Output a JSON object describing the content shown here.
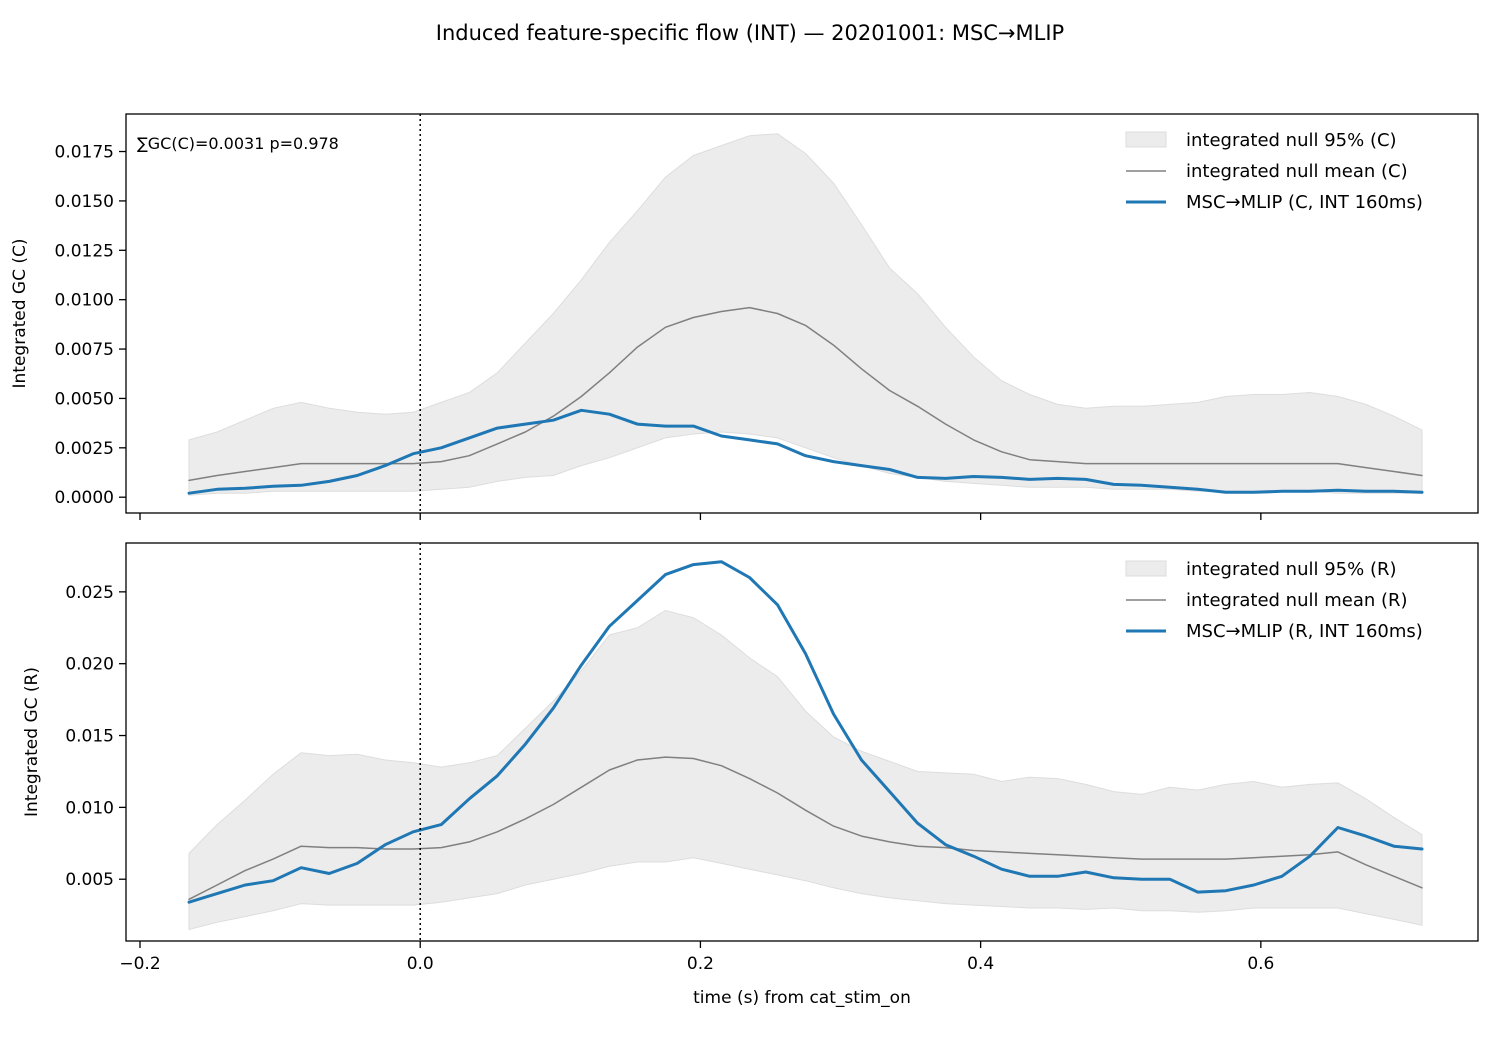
{
  "figure": {
    "suptitle": "Induced feature-specific flow (INT) — 20201001: MSC→MLIP",
    "xlabel": "time (s) from cat_stim_on",
    "colors": {
      "signal": "#1f77b4",
      "null_mean": "#808080",
      "null_band": "#ececec",
      "null_band_edge": "#dddddd"
    }
  },
  "chart_data": [
    {
      "type": "line",
      "ylabel": "Integrated GC (C)",
      "annotation": "∑GC(C)=0.0031  p=0.978",
      "xlim": [
        -0.21,
        0.755
      ],
      "ylim": [
        -0.0008,
        0.0194
      ],
      "xticks": [
        -0.2,
        0.0,
        0.2,
        0.4,
        0.6
      ],
      "xtick_labels": [
        "",
        "",
        "",
        "",
        ""
      ],
      "yticks": [
        0.0,
        0.0025,
        0.005,
        0.0075,
        0.01,
        0.0125,
        0.015,
        0.0175
      ],
      "ytick_labels": [
        "0.0000",
        "0.0025",
        "0.0050",
        "0.0075",
        "0.0100",
        "0.0125",
        "0.0150",
        "0.0175"
      ],
      "vline_x": 0.0,
      "legend_position": "upper right",
      "legend": [
        "integrated null 95% (C)",
        "integrated null mean (C)",
        "MSC→MLIP (C, INT 160ms)"
      ],
      "x": [
        -0.165,
        -0.145,
        -0.125,
        -0.105,
        -0.085,
        -0.065,
        -0.045,
        -0.025,
        -0.005,
        0.015,
        0.035,
        0.055,
        0.075,
        0.095,
        0.115,
        0.135,
        0.155,
        0.175,
        0.195,
        0.215,
        0.235,
        0.255,
        0.275,
        0.295,
        0.315,
        0.335,
        0.355,
        0.375,
        0.395,
        0.415,
        0.435,
        0.455,
        0.475,
        0.495,
        0.515,
        0.535,
        0.555,
        0.575,
        0.595,
        0.615,
        0.635,
        0.655,
        0.675,
        0.695,
        0.715
      ],
      "band_upper": [
        0.0029,
        0.0033,
        0.0039,
        0.0045,
        0.0048,
        0.0045,
        0.0043,
        0.0042,
        0.0043,
        0.0048,
        0.0053,
        0.0063,
        0.0078,
        0.0093,
        0.011,
        0.0129,
        0.0145,
        0.0162,
        0.0173,
        0.0178,
        0.0183,
        0.0184,
        0.0174,
        0.0159,
        0.0138,
        0.0116,
        0.0103,
        0.0086,
        0.0071,
        0.0059,
        0.0052,
        0.0047,
        0.0045,
        0.0046,
        0.0046,
        0.0047,
        0.0048,
        0.0051,
        0.0052,
        0.0052,
        0.0053,
        0.0051,
        0.0047,
        0.0041,
        0.0034
      ],
      "band_lower": [
        0.0001,
        0.0002,
        0.0002,
        0.0003,
        0.0003,
        0.0003,
        0.0003,
        0.0003,
        0.0003,
        0.0004,
        0.0005,
        0.0008,
        0.001,
        0.0011,
        0.0016,
        0.002,
        0.0025,
        0.003,
        0.0032,
        0.0033,
        0.0032,
        0.003,
        0.0025,
        0.002,
        0.0016,
        0.0012,
        0.001,
        0.0008,
        0.0007,
        0.0006,
        0.0005,
        0.0005,
        0.0005,
        0.0004,
        0.0004,
        0.0004,
        0.0003,
        0.0003,
        0.0003,
        0.0003,
        0.0003,
        0.0002,
        0.0002,
        0.0002,
        0.0002
      ],
      "series": [
        {
          "name": "integrated null mean (C)",
          "values": [
            0.00085,
            0.0011,
            0.0013,
            0.0015,
            0.0017,
            0.0017,
            0.0017,
            0.0017,
            0.0017,
            0.0018,
            0.0021,
            0.0027,
            0.0033,
            0.0041,
            0.0051,
            0.0063,
            0.0076,
            0.0086,
            0.0091,
            0.0094,
            0.0096,
            0.0093,
            0.0087,
            0.0077,
            0.0065,
            0.0054,
            0.0046,
            0.0037,
            0.0029,
            0.0023,
            0.0019,
            0.0018,
            0.0017,
            0.0017,
            0.0017,
            0.0017,
            0.0017,
            0.0017,
            0.0017,
            0.0017,
            0.0017,
            0.0017,
            0.0015,
            0.0013,
            0.0011
          ]
        },
        {
          "name": "MSC→MLIP (C, INT 160ms)",
          "values": [
            0.0002,
            0.0004,
            0.00045,
            0.00055,
            0.0006,
            0.0008,
            0.0011,
            0.0016,
            0.0022,
            0.0025,
            0.003,
            0.0035,
            0.0037,
            0.0039,
            0.0044,
            0.0042,
            0.0037,
            0.0036,
            0.0036,
            0.0031,
            0.0029,
            0.0027,
            0.0021,
            0.0018,
            0.0016,
            0.0014,
            0.001,
            0.00095,
            0.00105,
            0.001,
            0.0009,
            0.00095,
            0.0009,
            0.00065,
            0.0006,
            0.0005,
            0.0004,
            0.00025,
            0.00025,
            0.0003,
            0.0003,
            0.00035,
            0.0003,
            0.0003,
            0.00025
          ]
        }
      ]
    },
    {
      "type": "line",
      "ylabel": "Integrated GC (R)",
      "xlim": [
        -0.21,
        0.755
      ],
      "ylim": [
        0.0007,
        0.0284
      ],
      "xticks": [
        -0.2,
        0.0,
        0.2,
        0.4,
        0.6
      ],
      "xtick_labels": [
        "−0.2",
        "0.0",
        "0.2",
        "0.4",
        "0.6"
      ],
      "yticks": [
        0.005,
        0.01,
        0.015,
        0.02,
        0.025
      ],
      "ytick_labels": [
        "0.005",
        "0.010",
        "0.015",
        "0.020",
        "0.025"
      ],
      "vline_x": 0.0,
      "legend_position": "upper right",
      "legend": [
        "integrated null 95% (R)",
        "integrated null mean (R)",
        "MSC→MLIP (R, INT 160ms)"
      ],
      "x": [
        -0.165,
        -0.145,
        -0.125,
        -0.105,
        -0.085,
        -0.065,
        -0.045,
        -0.025,
        -0.005,
        0.015,
        0.035,
        0.055,
        0.075,
        0.095,
        0.115,
        0.135,
        0.155,
        0.175,
        0.195,
        0.215,
        0.235,
        0.255,
        0.275,
        0.295,
        0.315,
        0.335,
        0.355,
        0.375,
        0.395,
        0.415,
        0.435,
        0.455,
        0.475,
        0.495,
        0.515,
        0.535,
        0.555,
        0.575,
        0.595,
        0.615,
        0.635,
        0.655,
        0.675,
        0.695,
        0.715
      ],
      "band_upper": [
        0.0068,
        0.0088,
        0.0105,
        0.0123,
        0.0138,
        0.0136,
        0.0137,
        0.0133,
        0.0131,
        0.0128,
        0.0131,
        0.0136,
        0.0155,
        0.0174,
        0.0195,
        0.022,
        0.0225,
        0.0237,
        0.0232,
        0.022,
        0.0204,
        0.0191,
        0.0167,
        0.0149,
        0.0139,
        0.0132,
        0.0125,
        0.0124,
        0.0123,
        0.0118,
        0.0121,
        0.012,
        0.0116,
        0.0111,
        0.0109,
        0.0114,
        0.0112,
        0.0116,
        0.0118,
        0.0114,
        0.0116,
        0.0117,
        0.0106,
        0.0093,
        0.0081
      ],
      "band_lower": [
        0.0015,
        0.002,
        0.0024,
        0.0028,
        0.0033,
        0.0032,
        0.0032,
        0.0032,
        0.0032,
        0.0034,
        0.0037,
        0.004,
        0.0046,
        0.005,
        0.0054,
        0.0059,
        0.0062,
        0.0062,
        0.0065,
        0.0061,
        0.0057,
        0.0053,
        0.0049,
        0.0044,
        0.004,
        0.0037,
        0.0035,
        0.0033,
        0.0032,
        0.0031,
        0.003,
        0.003,
        0.0029,
        0.003,
        0.0028,
        0.0028,
        0.0027,
        0.0028,
        0.003,
        0.003,
        0.003,
        0.003,
        0.0026,
        0.0022,
        0.0018
      ],
      "series": [
        {
          "name": "integrated null mean (R)",
          "values": [
            0.0036,
            0.0046,
            0.0056,
            0.0064,
            0.0073,
            0.0072,
            0.0072,
            0.0071,
            0.0071,
            0.0072,
            0.0076,
            0.0083,
            0.0092,
            0.0102,
            0.0114,
            0.0126,
            0.0133,
            0.0135,
            0.0134,
            0.0129,
            0.012,
            0.011,
            0.0098,
            0.0087,
            0.008,
            0.0076,
            0.0073,
            0.0072,
            0.007,
            0.0069,
            0.0068,
            0.0067,
            0.0066,
            0.0065,
            0.0064,
            0.0064,
            0.0064,
            0.0064,
            0.0065,
            0.0066,
            0.0067,
            0.0069,
            0.006,
            0.0052,
            0.0044
          ]
        },
        {
          "name": "MSC→MLIP (R, INT 160ms)",
          "values": [
            0.0034,
            0.004,
            0.0046,
            0.0049,
            0.0058,
            0.0054,
            0.0061,
            0.0074,
            0.0083,
            0.0088,
            0.0106,
            0.0122,
            0.0144,
            0.0169,
            0.0199,
            0.0226,
            0.0244,
            0.0262,
            0.0269,
            0.0271,
            0.026,
            0.0241,
            0.0207,
            0.0165,
            0.0133,
            0.0111,
            0.0089,
            0.0074,
            0.0066,
            0.0057,
            0.0052,
            0.0052,
            0.0055,
            0.0051,
            0.005,
            0.005,
            0.0041,
            0.0042,
            0.0046,
            0.0052,
            0.0066,
            0.0086,
            0.008,
            0.0073,
            0.0071
          ]
        }
      ]
    }
  ]
}
